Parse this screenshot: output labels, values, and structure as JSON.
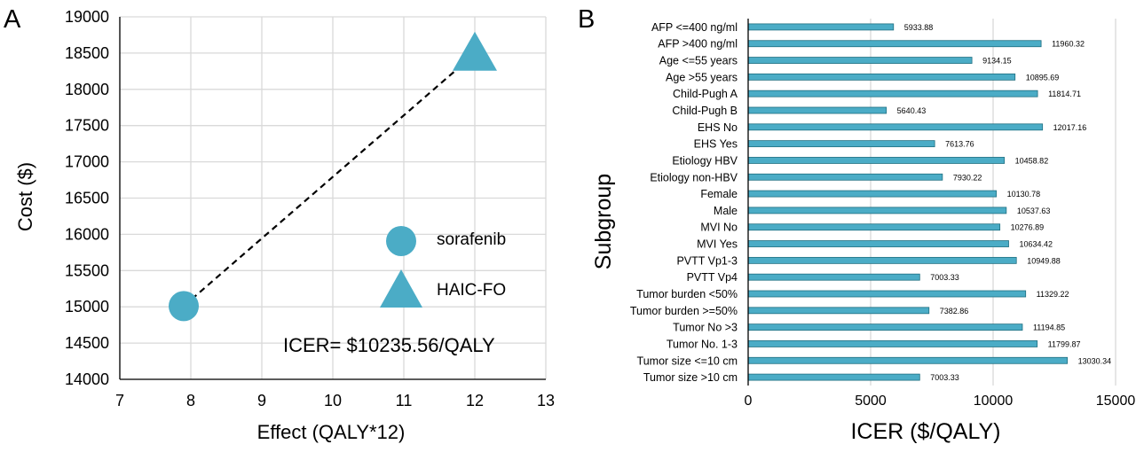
{
  "colors": {
    "marker": "#4bacc6",
    "bar": "#4bacc6",
    "bar_edge": "#1f6f80",
    "grid": "#d9d9d9",
    "axis": "#000000",
    "text": "#000000"
  },
  "panels": {
    "a": {
      "letter": "A"
    },
    "b": {
      "letter": "B"
    }
  },
  "chart_data": [
    {
      "type": "scatter",
      "panel": "A",
      "xlabel": "Effect (QALY*12)",
      "ylabel": "Cost ($)",
      "xlim": [
        7,
        13
      ],
      "ylim": [
        14000,
        19000
      ],
      "xticks": [
        "7",
        "8",
        "9",
        "10",
        "11",
        "12",
        "13"
      ],
      "yticks": [
        "14000",
        "14500",
        "15000",
        "15500",
        "16000",
        "16500",
        "17000",
        "17500",
        "18000",
        "18500",
        "19000"
      ],
      "grid": "vertical and horizontal",
      "series": [
        {
          "name": "sorafenib",
          "marker": "circle",
          "x": 7.9,
          "y": 15010
        },
        {
          "name": "HAIC-FO",
          "marker": "triangle",
          "x": 12.0,
          "y": 18490
        }
      ],
      "connector": "dashed line between the two strategies",
      "legend_position": "lower-right",
      "annotation": "ICER= $10235.56/QALY"
    },
    {
      "type": "bar",
      "orientation": "horizontal",
      "panel": "B",
      "xlabel": "ICER ($/QALY)",
      "ylabel": "Subgroup",
      "xlim": [
        0,
        15000
      ],
      "xticks": [
        "0",
        "5000",
        "10000",
        "15000"
      ],
      "grid": "vertical",
      "categories": [
        "AFP <=400 ng/ml",
        "AFP >400 ng/ml",
        "Age <=55 years",
        "Age >55 years",
        "Child-Pugh A",
        "Child-Pugh B",
        "EHS No",
        "EHS Yes",
        "Etiology HBV",
        "Etiology non-HBV",
        "Female",
        "Male",
        "MVI No",
        "MVI Yes",
        "PVTT Vp1-3",
        "PVTT Vp4",
        "Tumor burden <50%",
        "Tumor burden >=50%",
        "Tumor No >3",
        "Tumor No. 1-3",
        "Tumor size <=10 cm",
        "Tumor size >10 cm"
      ],
      "values": [
        5933.88,
        11960.32,
        9134.15,
        10895.69,
        11814.71,
        5640.43,
        12017.16,
        7613.76,
        10458.82,
        7930.22,
        10130.78,
        10537.63,
        10276.89,
        10634.42,
        10949.88,
        7003.33,
        11329.22,
        7382.86,
        11194.85,
        11799.87,
        13030.34,
        7003.33
      ],
      "value_labels": [
        "5933.88",
        "11960.32",
        "9134.15",
        "10895.69",
        "11814.71",
        "5640.43",
        "12017.16",
        "7613.76",
        "10458.82",
        "7930.22",
        "10130.78",
        "10537.63",
        "10276.89",
        "10634.42",
        "10949.88",
        "7003.33",
        "11329.22",
        "7382.86",
        "11194.85",
        "11799.87",
        "13030.34",
        "7003.33"
      ]
    }
  ]
}
